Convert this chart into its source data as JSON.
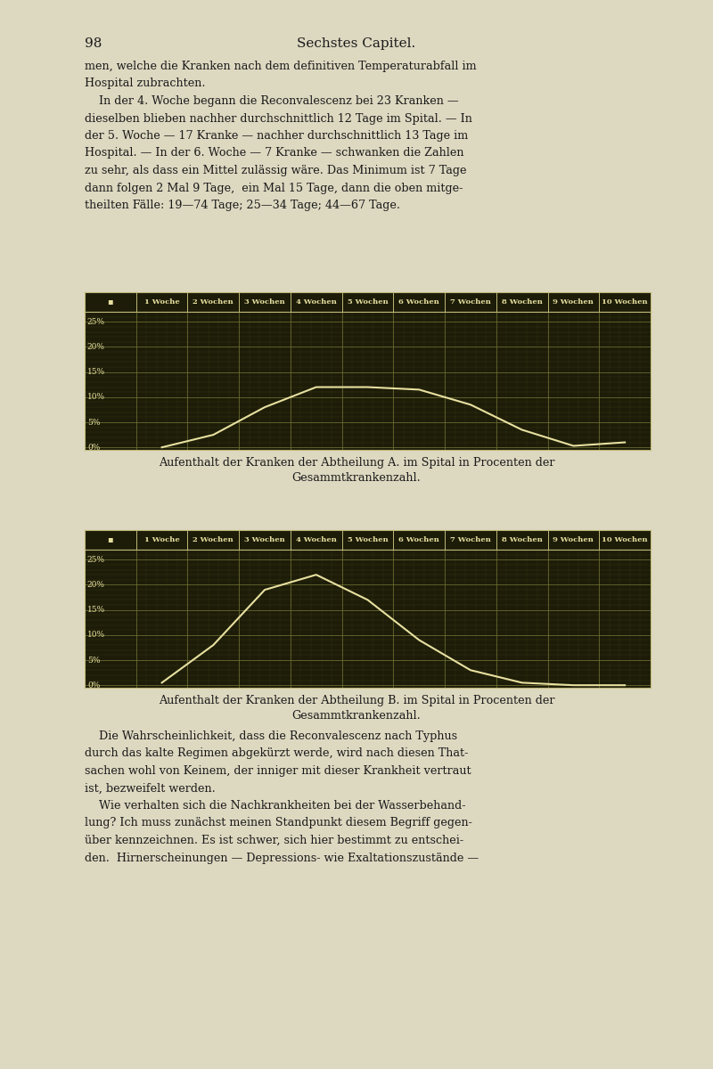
{
  "page_number": "98",
  "page_title": "Sechstes Capitel.",
  "bg_color": "#ddd8c0",
  "chart_bg": "#1c1c08",
  "grid_color_major": "#7a7a3a",
  "grid_color_minor": "#4a4a20",
  "line_color": "#e8e0a0",
  "header_bg": "#1c1c08",
  "header_text": "#e8e0a0",
  "border_color": "#c0b878",
  "x_labels": [
    "1 Woche",
    "2 Wochen",
    "3 Wochen",
    "4 Wochen",
    "5 Wochen",
    "6 Wochen",
    "7 Wochen",
    "8 Wochen",
    "9 Wochen",
    "10 Wochen"
  ],
  "y_ticks": [
    0,
    5,
    10,
    15,
    20,
    25
  ],
  "y_labels": [
    "0%",
    "5%",
    "10%",
    "15%",
    "20%",
    "25%"
  ],
  "chart_A_x": [
    1,
    2,
    3,
    4,
    5,
    6,
    7,
    8,
    9,
    10
  ],
  "chart_A_y": [
    0.0,
    2.5,
    8.0,
    12.0,
    12.0,
    11.5,
    8.5,
    3.5,
    0.3,
    1.0
  ],
  "chart_B_x": [
    1,
    2,
    3,
    4,
    5,
    6,
    7,
    8,
    9,
    10
  ],
  "chart_B_y": [
    0.5,
    8.0,
    19.0,
    22.0,
    17.0,
    9.0,
    3.0,
    0.5,
    0.0,
    0.0
  ],
  "caption_A_line1": "Aufenthalt der Kranken der Abtheilung A. im Spital in Procenten der",
  "caption_A_line2": "Gesammtkrankenzahl.",
  "caption_B_line1": "Aufenthalt der Kranken der Abtheilung B. im Spital in Procenten der",
  "caption_B_line2": "Gesammtkrankenzahl.",
  "para1_line1": "men, welche die Kranken nach dem definitiven Temperaturabfall im",
  "para1_line2": "Hospital zubrachten.",
  "para2_indent": "    In der 4. Woche begann die Reconvalescenz bei 23 Kranken —",
  "para2_line2": "dieselben blieben nachher durchschnittlich 12 Tage im Spital. — In",
  "para2_line3": "der 5. Woche — 17 Kranke — nachher durchschnittlich 13 Tage im",
  "para2_line4": "Hospital. — In der 6. Woche — 7 Kranke — schwanken die Zahlen",
  "para2_line5": "zu sehr, als dass ein Mittel zulässig wäre. Das Minimum ist 7 Tage",
  "para2_line6": "dann folgen 2 Mal 9 Tage,  ein Mal 15 Tage, dann die oben mitge-",
  "para2_line7": "theilten Fälle: 19—74 Tage; 25—34 Tage; 44—67 Tage.",
  "bottom_para1_indent": "    Die Wahrscheinlichkeit, dass die Reconvalescenz nach Typhus",
  "bottom_para1_line2": "durch das kalte Regimen abgekürzt werde, wird nach diesen That-",
  "bottom_para1_line3": "sachen wohl von Keinem, der inniger mit dieser Krankheit vertraut",
  "bottom_para1_line4": "ist, bezweifelt werden.",
  "bottom_para2_indent": "    Wie verhalten sich die Nachkrankheiten bei der Wasserbehand-",
  "bottom_para2_line2": "lung? Ich muss zunächst meinen Standpunkt diesem Begriff gegen-",
  "bottom_para2_line3": "über kennzeichnen. Es ist schwer, sich hier bestimmt zu entschei-",
  "bottom_para2_line4": "den.  Hirnerscheinungen — Depressions- wie Exaltationszustände —"
}
